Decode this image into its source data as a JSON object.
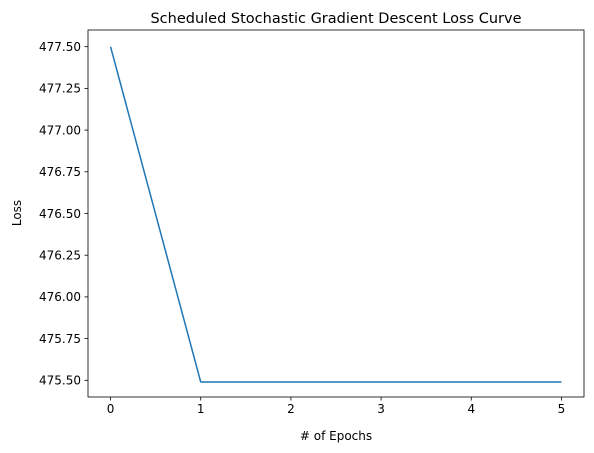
{
  "chart_data": {
    "type": "line",
    "title": "Scheduled Stochastic Gradient Descent Loss Curve",
    "xlabel": "# of Epochs",
    "ylabel": "Loss",
    "xlim": [
      -0.25,
      5.25
    ],
    "ylim": [
      475.4,
      477.6
    ],
    "xticks": [
      0,
      1,
      2,
      3,
      4,
      5
    ],
    "xtick_labels": [
      "0",
      "1",
      "2",
      "3",
      "4",
      "5"
    ],
    "yticks": [
      475.5,
      475.75,
      476.0,
      476.25,
      476.5,
      476.75,
      477.0,
      477.25,
      477.5
    ],
    "ytick_labels": [
      "475.50",
      "475.75",
      "476.00",
      "476.25",
      "476.50",
      "476.75",
      "477.00",
      "477.25",
      "477.50"
    ],
    "grid": false,
    "series": [
      {
        "color": "#1f77b4",
        "x": [
          0,
          1,
          2,
          3,
          4,
          5
        ],
        "y": [
          477.5,
          475.49,
          475.49,
          475.49,
          475.49,
          475.49
        ]
      }
    ]
  }
}
